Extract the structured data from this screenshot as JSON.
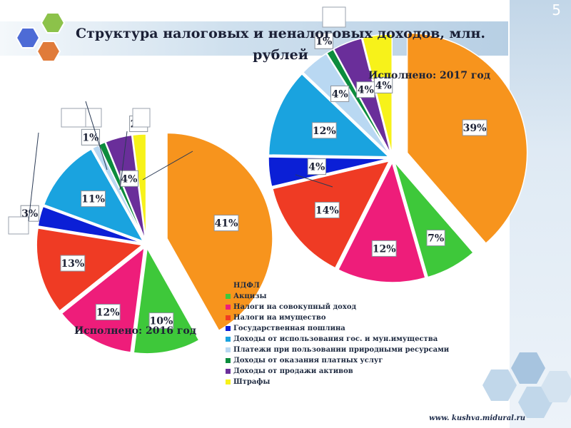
{
  "slide": {
    "number": "5",
    "title": "Структура налоговых и неналоговых доходов, млн. рублей",
    "footer": "www. kushva.midural.ru"
  },
  "colors": {
    "hex_green": "#8cc24a",
    "hex_blue": "#4d6bd6",
    "hex_orange": "#e07b3a"
  },
  "chart_data": [
    {
      "type": "pie",
      "title": "Исполнено: 2016 год",
      "categories": [
        "НДФЛ",
        "Акцизы",
        "Налоги на совокупный доход",
        "Налоги на имущество",
        "Государственная пошлина",
        "Доходы от использования гос. и мун.имущества",
        "Платежи при пользовании природными ресурсами",
        "Доходы от оказания платных услуг",
        "Доходы от продажи активов",
        "Штрафы"
      ],
      "values": [
        41,
        10,
        12,
        13,
        3,
        11,
        1,
        1,
        4,
        2
      ],
      "labels": [
        "41%",
        "10%",
        "12%",
        "13%",
        "3%",
        "11%",
        "1%",
        "",
        "4%",
        "2%"
      ],
      "colors": [
        "#f7941d",
        "#3ec83a",
        "#ee1d7a",
        "#ef3b24",
        "#0b1fd6",
        "#1aa3df",
        "#b9d8f2",
        "#0c8c3d",
        "#6a2e9a",
        "#f7f21a"
      ]
    },
    {
      "type": "pie",
      "title": "Исполнено: 2017 год",
      "categories": [
        "НДФЛ",
        "Акцизы",
        "Налоги на совокупный доход",
        "Налоги на имущество",
        "Государственная пошлина",
        "Доходы от использования гос. и мун.имущества",
        "Платежи при пользовании природными ресурсами",
        "Доходы от оказания платных услуг",
        "Доходы от продажи активов",
        "Штрафы"
      ],
      "values": [
        39,
        7,
        12,
        14,
        4,
        12,
        4,
        1,
        4,
        4
      ],
      "labels": [
        "39%",
        "7%",
        "12%",
        "14%",
        "4%",
        "12%",
        "4%",
        "1%",
        "4%",
        "4%"
      ],
      "colors": [
        "#f7941d",
        "#3ec83a",
        "#ee1d7a",
        "#ef3b24",
        "#0b1fd6",
        "#1aa3df",
        "#b9d8f2",
        "#0c8c3d",
        "#6a2e9a",
        "#f7f21a"
      ]
    }
  ],
  "legend": [
    {
      "label": "НДФЛ",
      "color": "#f7941d"
    },
    {
      "label": "Акцизы",
      "color": "#3ec83a"
    },
    {
      "label": "Налоги на совокупный доход",
      "color": "#ee1d7a"
    },
    {
      "label": "Налоги на имущество",
      "color": "#ef3b24"
    },
    {
      "label": "Государственная пошлина",
      "color": "#0b1fd6"
    },
    {
      "label": "Доходы от использования гос. и мун.имущества",
      "color": "#1aa3df"
    },
    {
      "label": "Платежи при пользовании природными ресурсами",
      "color": "#b9d8f2"
    },
    {
      "label": "Доходы от оказания платных услуг",
      "color": "#0c8c3d"
    },
    {
      "label": "Доходы от продажи активов",
      "color": "#6a2e9a"
    },
    {
      "label": "Штрафы",
      "color": "#f7f21a"
    }
  ]
}
